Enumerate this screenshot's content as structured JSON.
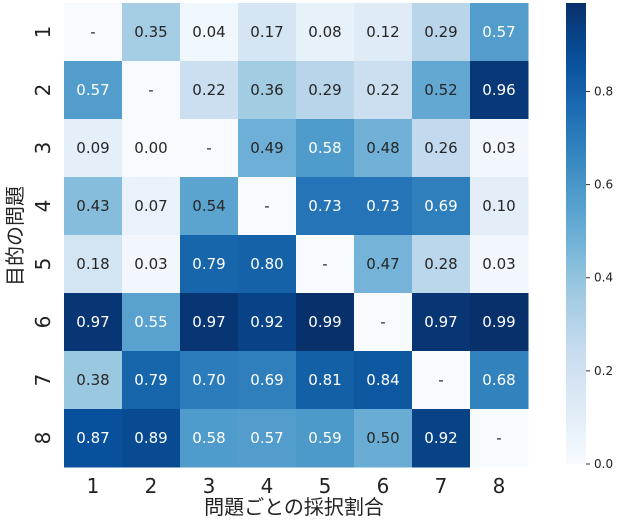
{
  "chart_data": {
    "type": "heatmap",
    "title": "",
    "xlabel": "問題ごとの採択割合",
    "ylabel": "目的の問題",
    "x_categories": [
      "1",
      "2",
      "3",
      "4",
      "5",
      "6",
      "7",
      "8"
    ],
    "y_categories": [
      "1",
      "2",
      "3",
      "4",
      "5",
      "6",
      "7",
      "8"
    ],
    "values": [
      [
        null,
        0.35,
        0.04,
        0.17,
        0.08,
        0.12,
        0.29,
        0.57
      ],
      [
        0.57,
        null,
        0.22,
        0.36,
        0.29,
        0.22,
        0.52,
        0.96
      ],
      [
        0.09,
        0.0,
        null,
        0.49,
        0.58,
        0.48,
        0.26,
        0.03
      ],
      [
        0.43,
        0.07,
        0.54,
        null,
        0.73,
        0.73,
        0.69,
        0.1
      ],
      [
        0.18,
        0.03,
        0.79,
        0.8,
        null,
        0.47,
        0.28,
        0.03
      ],
      [
        0.97,
        0.55,
        0.97,
        0.92,
        0.99,
        null,
        0.97,
        0.99
      ],
      [
        0.38,
        0.79,
        0.7,
        0.69,
        0.81,
        0.84,
        null,
        0.68
      ],
      [
        0.87,
        0.89,
        0.58,
        0.57,
        0.59,
        0.5,
        0.92,
        null
      ]
    ],
    "diagonal_label": "-",
    "colormap": "Blues",
    "colorbar": {
      "range": [
        0.0,
        0.99
      ],
      "ticks": [
        0.0,
        0.2,
        0.4,
        0.6,
        0.8
      ],
      "tick_labels": [
        "0.0",
        "0.2",
        "0.4",
        "0.6",
        "0.8"
      ]
    },
    "grid": false,
    "legend": "colorbar-right"
  }
}
